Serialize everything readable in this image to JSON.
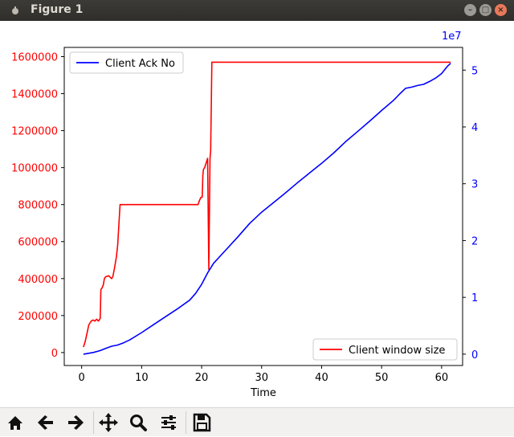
{
  "window": {
    "title": "Figure 1"
  },
  "toolbar": {
    "buttons": [
      {
        "name": "home",
        "icon": "home-icon"
      },
      {
        "name": "back",
        "icon": "arrow-left-icon"
      },
      {
        "name": "forward",
        "icon": "arrow-right-icon"
      },
      {
        "name": "pan",
        "icon": "move-icon"
      },
      {
        "name": "zoom",
        "icon": "zoom-icon"
      },
      {
        "name": "configure",
        "icon": "sliders-icon"
      },
      {
        "name": "save",
        "icon": "save-icon"
      }
    ]
  },
  "colors": {
    "left_axis": "#ff0000",
    "right_axis": "#0000ff",
    "window_series": "#ff0000",
    "ack_series": "#0000ff"
  },
  "chart_data": {
    "type": "line",
    "xlabel": "Time",
    "xlim": [
      -2.9,
      63.5
    ],
    "xticks": [
      0,
      10,
      20,
      30,
      40,
      50,
      60
    ],
    "left_axis": {
      "ylim": [
        -70000,
        1650000
      ],
      "ticks": [
        0,
        200000,
        400000,
        600000,
        800000,
        1000000,
        1200000,
        1400000,
        1600000
      ],
      "tick_labels": [
        "0",
        "200000",
        "400000",
        "600000",
        "800000",
        "1000000",
        "1200000",
        "1400000",
        "1600000"
      ],
      "color": "#ff0000"
    },
    "right_axis": {
      "offset_label": "1e7",
      "ylim": [
        -0.2,
        5.4
      ],
      "ticks": [
        0,
        1,
        2,
        3,
        4,
        5
      ],
      "tick_labels": [
        "0",
        "1",
        "2",
        "3",
        "4",
        "5"
      ],
      "color": "#0000ff"
    },
    "legends": [
      {
        "label": "Client Ack No",
        "placement": "upper-left",
        "color": "#0000ff"
      },
      {
        "label": "Client window size",
        "placement": "lower-right",
        "color": "#ff0000"
      }
    ],
    "series": [
      {
        "name": "Client window size",
        "axis": "left",
        "color": "#ff0000",
        "x": [
          0.3,
          0.6,
          0.8,
          1.0,
          1.2,
          1.4,
          1.6,
          1.8,
          2.0,
          2.2,
          2.5,
          2.8,
          3.1,
          3.2,
          3.4,
          3.6,
          3.8,
          4.0,
          4.5,
          5.0,
          5.2,
          5.5,
          5.8,
          6.0,
          6.2,
          6.4,
          8,
          10,
          12,
          14,
          16,
          18,
          19.4,
          19.6,
          19.9,
          20.1,
          20.2,
          20.3,
          20.5,
          20.7,
          21.0,
          21.2,
          21.4,
          21.5,
          21.7,
          22,
          30,
          40,
          50,
          60,
          61.5
        ],
        "y": [
          30000,
          60000,
          90000,
          120000,
          150000,
          160000,
          170000,
          175000,
          175000,
          170000,
          180000,
          170000,
          185000,
          340000,
          350000,
          365000,
          400000,
          410000,
          415000,
          400000,
          410000,
          460000,
          520000,
          580000,
          690000,
          800000,
          800000,
          800000,
          800000,
          800000,
          800000,
          800000,
          800000,
          820000,
          840000,
          840000,
          960000,
          990000,
          1000000,
          1020000,
          1050000,
          450000,
          1050000,
          1090000,
          1570000,
          1570000,
          1570000,
          1570000,
          1570000,
          1570000,
          1570000
        ]
      },
      {
        "name": "Client Ack No",
        "axis": "right",
        "color": "#0000ff",
        "x": [
          0.3,
          2,
          3,
          4,
          5,
          6,
          7,
          8,
          10,
          12,
          14,
          16,
          18,
          19,
          20,
          21,
          22,
          24,
          26,
          28,
          30,
          32,
          34,
          36,
          38,
          40,
          42,
          44,
          46,
          48,
          50,
          52,
          53,
          54,
          55,
          56,
          57,
          58,
          59,
          60,
          61,
          61.5
        ],
        "y": [
          0,
          0.03,
          0.06,
          0.1,
          0.14,
          0.16,
          0.2,
          0.25,
          0.38,
          0.52,
          0.66,
          0.8,
          0.95,
          1.07,
          1.23,
          1.43,
          1.6,
          1.83,
          2.06,
          2.3,
          2.5,
          2.67,
          2.84,
          3.02,
          3.19,
          3.36,
          3.54,
          3.74,
          3.92,
          4.1,
          4.29,
          4.47,
          4.58,
          4.68,
          4.7,
          4.73,
          4.75,
          4.8,
          4.86,
          4.94,
          5.07,
          5.12
        ]
      }
    ]
  }
}
